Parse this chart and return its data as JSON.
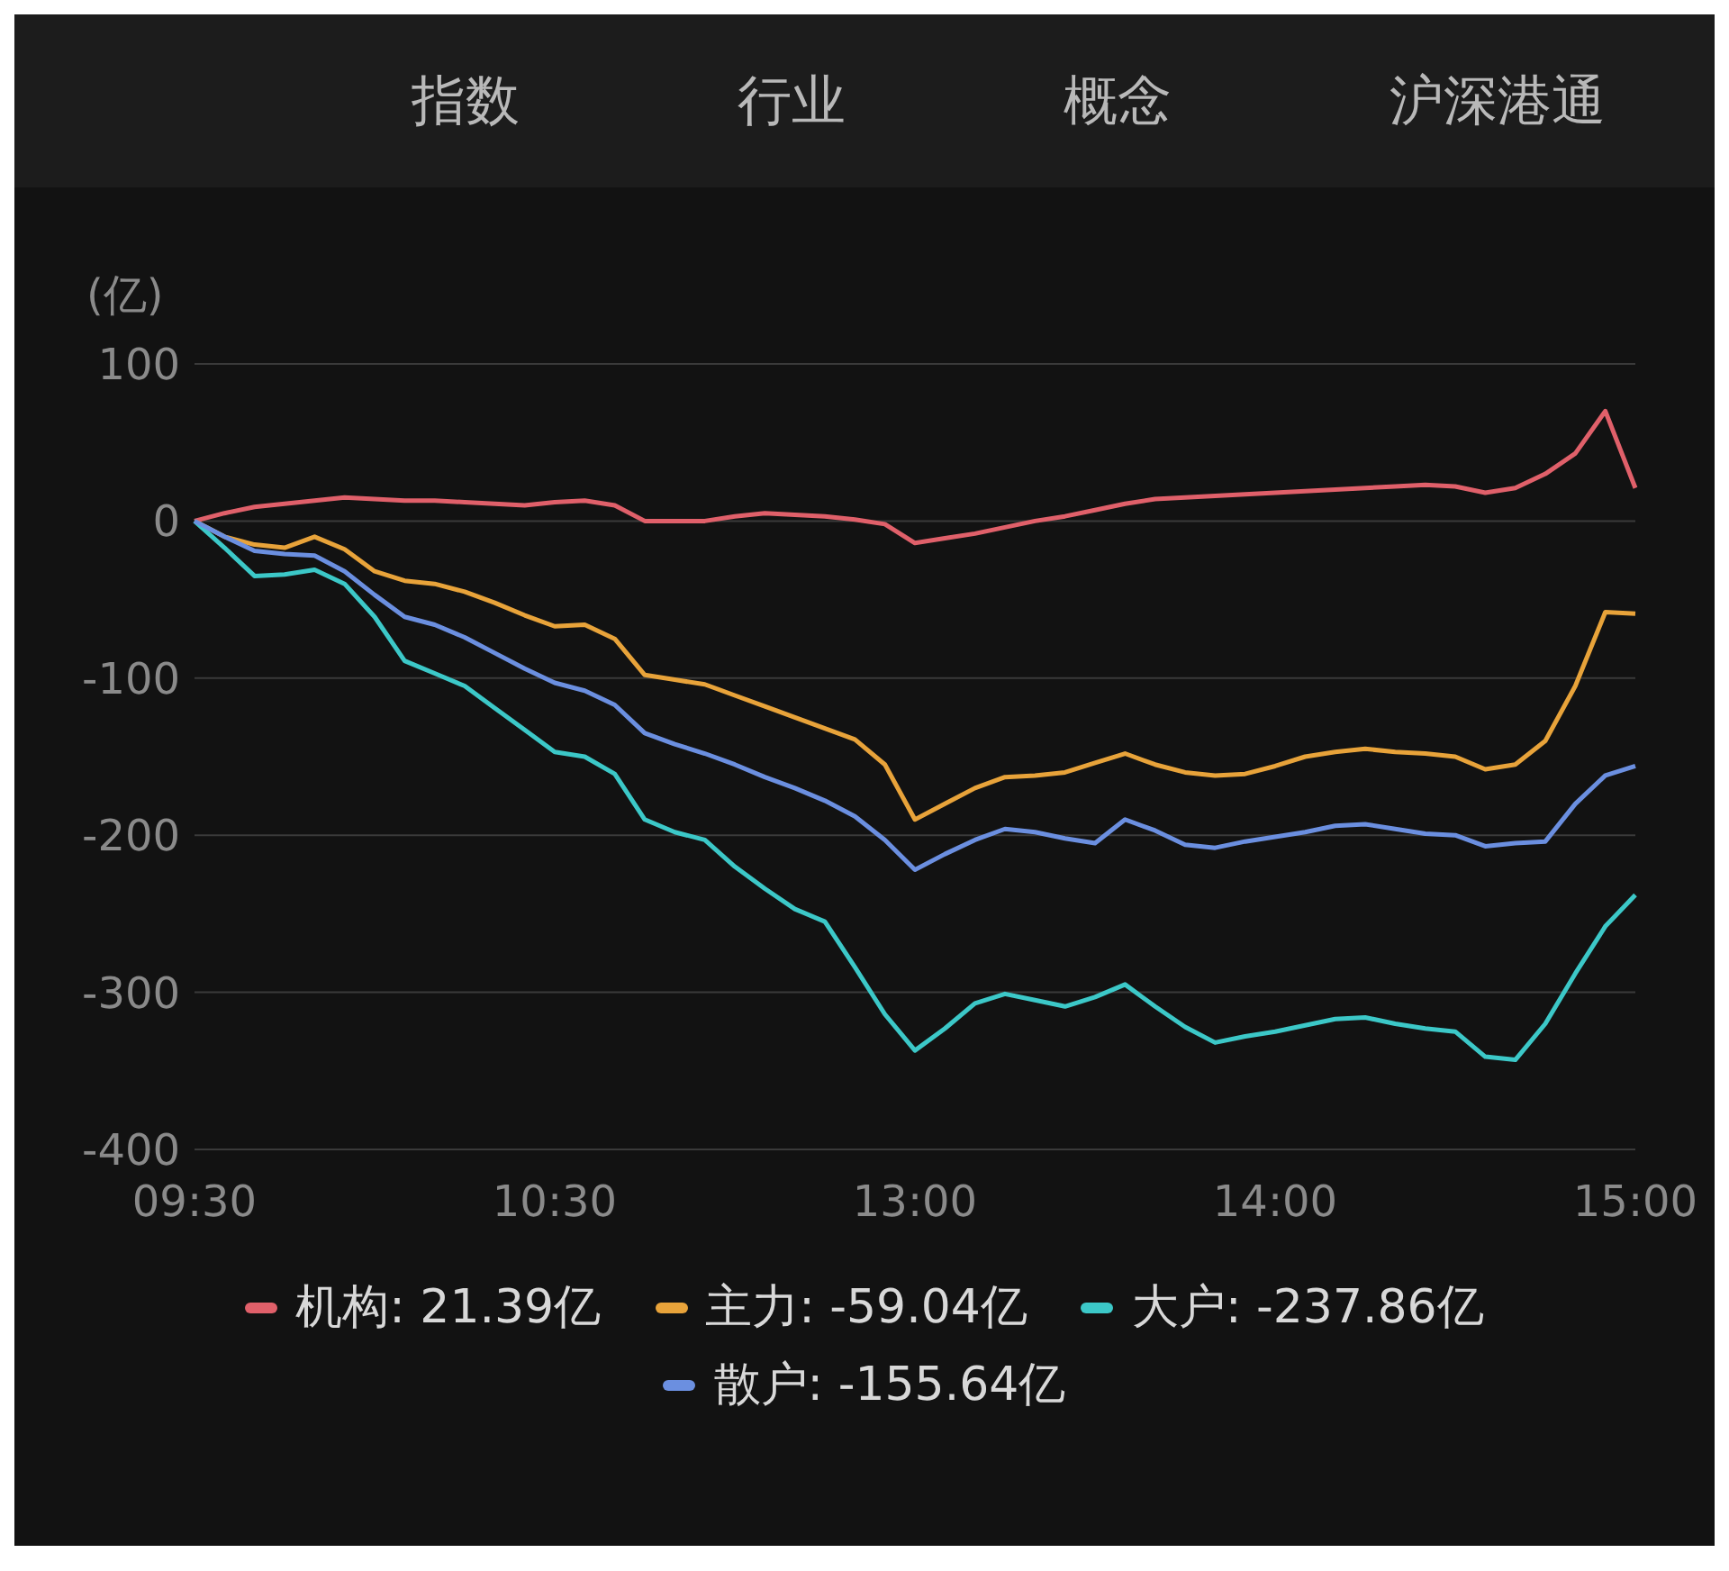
{
  "chart_data": {
    "type": "line",
    "ylabel": "(亿)",
    "annotations": [
      "指数",
      "行业",
      "概念",
      "沪深港通"
    ],
    "categories": [
      "09:30",
      null,
      null,
      null,
      null,
      null,
      null,
      null,
      null,
      null,
      null,
      null,
      "10:30",
      null,
      null,
      null,
      null,
      null,
      null,
      null,
      null,
      null,
      null,
      null,
      "13:00",
      null,
      null,
      null,
      null,
      null,
      null,
      null,
      null,
      null,
      null,
      null,
      "14:00",
      null,
      null,
      null,
      null,
      null,
      null,
      null,
      null,
      null,
      null,
      null,
      "15:00"
    ],
    "ylim": [
      -400,
      100
    ],
    "yticks": [
      -400,
      -300,
      -200,
      -100,
      0,
      100
    ],
    "grid": "y",
    "legend": "bottom",
    "line_style": "solid",
    "marker": "none",
    "series": [
      {
        "name": "机构: 21.39亿",
        "color": "#e0606a",
        "values": [
          0,
          5,
          9,
          11,
          13,
          15,
          14,
          13,
          13,
          12,
          11,
          10,
          12,
          13,
          10,
          0,
          0,
          0,
          3,
          5,
          4,
          3,
          1,
          -2,
          -14,
          -11,
          -8,
          -4,
          0,
          3,
          7,
          11,
          14,
          15,
          16,
          17,
          18,
          19,
          20,
          21,
          22,
          23,
          22,
          18,
          21,
          30,
          43,
          70,
          21
        ]
      },
      {
        "name": "主力: -59.04亿",
        "color": "#e8a33a",
        "values": [
          0,
          -10,
          -15,
          -17,
          -10,
          -18,
          -32,
          -38,
          -40,
          -45,
          -52,
          -60,
          -67,
          -66,
          -75,
          -98,
          -101,
          -104,
          -111,
          -118,
          -125,
          -132,
          -139,
          -155,
          -190,
          -180,
          -170,
          -163,
          -162,
          -160,
          -154,
          -148,
          -155,
          -160,
          -162,
          -161,
          -156,
          -150,
          -147,
          -145,
          -147,
          -148,
          -150,
          -158,
          -155,
          -140,
          -105,
          -58,
          -59
        ]
      },
      {
        "name": "大户: -237.86亿",
        "color": "#3cc8c8",
        "values": [
          0,
          -17,
          -35,
          -34,
          -31,
          -40,
          -61,
          -89,
          -97,
          -105,
          -119,
          -133,
          -147,
          -150,
          -161,
          -190,
          -198,
          -203,
          -220,
          -234,
          -247,
          -255,
          -284,
          -314,
          -337,
          -323,
          -307,
          -301,
          -305,
          -309,
          -303,
          -295,
          -309,
          -322,
          -332,
          -328,
          -325,
          -321,
          -317,
          -316,
          -320,
          -323,
          -325,
          -341,
          -343,
          -320,
          -288,
          -258,
          -238
        ]
      },
      {
        "name": "散户: -155.64亿",
        "color": "#6b8fe0",
        "values": [
          0,
          -10,
          -19,
          -21,
          -22,
          -32,
          -47,
          -61,
          -66,
          -74,
          -84,
          -94,
          -103,
          -108,
          -117,
          -135,
          -142,
          -148,
          -155,
          -163,
          -170,
          -178,
          -188,
          -203,
          -222,
          -212,
          -203,
          -196,
          -198,
          -202,
          -205,
          -190,
          -197,
          -206,
          -208,
          -204,
          -201,
          -198,
          -194,
          -193,
          -196,
          -199,
          -200,
          -207,
          -205,
          -204,
          -180,
          -162,
          -156
        ]
      }
    ]
  }
}
